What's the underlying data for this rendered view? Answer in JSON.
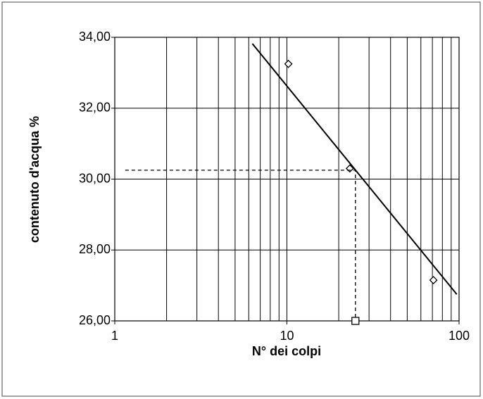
{
  "chart_data": {
    "type": "scatter",
    "xlabel": "N° dei colpi",
    "ylabel": "contenuto d'acqua %",
    "xscale": "log",
    "xlim": [
      1,
      100
    ],
    "xticks": [
      1,
      10,
      100
    ],
    "ylim": [
      26,
      34
    ],
    "yticks": [
      {
        "value": 26,
        "label": "26,00"
      },
      {
        "value": 28,
        "label": "28,00"
      },
      {
        "value": 30,
        "label": "30,00"
      },
      {
        "value": 32,
        "label": "32,00"
      },
      {
        "value": 34,
        "label": "34,00"
      }
    ],
    "grid": true,
    "series": [
      {
        "color": "#000000",
        "marker": "diamond",
        "x": [
          10.2,
          23.2,
          71
        ],
        "values": [
          33.25,
          30.3,
          27.15
        ]
      },
      {
        "color": "#000000",
        "line": "solid",
        "x": [
          6.3,
          97
        ],
        "values": [
          33.82,
          26.75
        ]
      },
      {
        "color": "#000000",
        "line": "dashed",
        "x": [
          1.15,
          25,
          25
        ],
        "values": [
          30.25,
          30.25,
          26
        ]
      },
      {
        "color": "#000000",
        "marker": "square",
        "x": [
          25
        ],
        "values": [
          26
        ]
      }
    ]
  }
}
